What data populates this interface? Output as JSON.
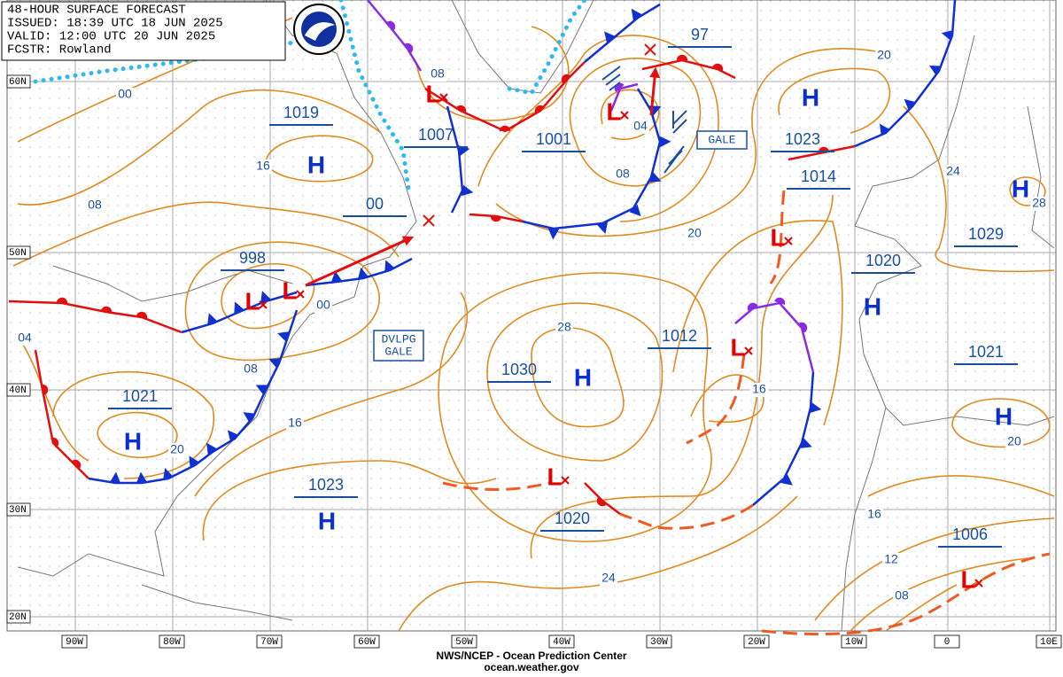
{
  "header": {
    "lines": [
      "48-HOUR SURFACE FORECAST",
      "ISSUED: 18:39 UTC 18 JUN 2025",
      "VALID:  12:00 UTC 20 JUN 2025",
      "FCSTR: Rowland"
    ]
  },
  "pressure_values": [
    "1019",
    "1007",
    "1001",
    "97",
    "1023",
    "1014",
    "1029",
    "998",
    "00",
    "1020",
    "1012",
    "1030",
    "1021",
    "1021",
    "1023",
    "1020",
    "1006"
  ],
  "highs": [
    "H",
    "H",
    "H",
    "H",
    "H",
    "H",
    "H",
    "H"
  ],
  "lows": [
    "L",
    "L",
    "L",
    "L",
    "L",
    "L",
    "L",
    "L"
  ],
  "isobar_labels": [
    "00",
    "16",
    "08",
    "04",
    "08",
    "00",
    "16",
    "20",
    "08",
    "04",
    "08",
    "20",
    "28",
    "16",
    "20",
    "24",
    "28",
    "20",
    "16",
    "12",
    "08",
    "24"
  ],
  "warnings": [
    [
      "GALE"
    ],
    [
      "DVLPG",
      "GALE"
    ]
  ],
  "lat_labels": [
    "60N",
    "50N",
    "40N",
    "30N",
    "20N"
  ],
  "lon_labels": [
    "90W",
    "80W",
    "70W",
    "60W",
    "50W",
    "40W",
    "30W",
    "20W",
    "10W",
    "0",
    "10E"
  ],
  "footer": [
    "NWS/NCEP - Ocean Prediction Center",
    "ocean.weather.gov"
  ]
}
